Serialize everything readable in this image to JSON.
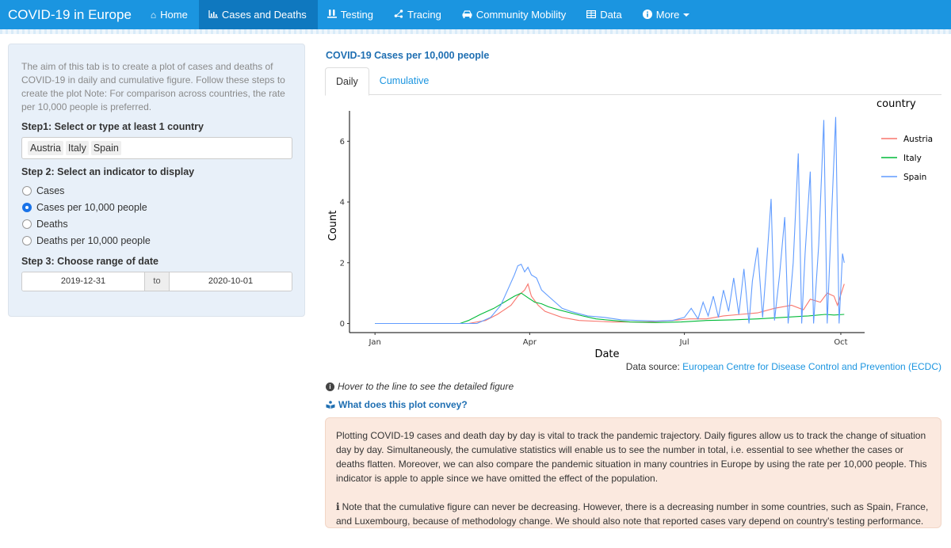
{
  "navbar": {
    "brand": "COVID-19 in Europe",
    "items": [
      {
        "label": "Home",
        "icon": "home-icon"
      },
      {
        "label": "Cases and Deaths",
        "icon": "bar-chart-icon",
        "active": true
      },
      {
        "label": "Testing",
        "icon": "vials-icon"
      },
      {
        "label": "Tracing",
        "icon": "share-nodes-icon"
      },
      {
        "label": "Community Mobility",
        "icon": "car-icon"
      },
      {
        "label": "Data",
        "icon": "table-icon"
      },
      {
        "label": "More",
        "icon": "info-circle-icon",
        "dropdown": true
      }
    ]
  },
  "sidebar": {
    "intro": "The aim of this tab is to create a plot of cases and deaths of COVID-19 in daily and cumulative figure. Follow these steps to create the plot Note: For comparison across countries, the rate per 10,000 people is preferred.",
    "step1": "Step1: Select or type at least 1 country",
    "countries": [
      "Austria",
      "Italy",
      "Spain"
    ],
    "step2": "Step 2: Select an indicator to display",
    "indicators": [
      "Cases",
      "Cases per 10,000 people",
      "Deaths",
      "Deaths per 10,000 people"
    ],
    "selected_indicator": "Cases per 10,000 people",
    "step3": "Step 3: Choose range of date",
    "date_start": "2019-12-31",
    "date_sep": "to",
    "date_end": "2020-10-01"
  },
  "main": {
    "title": "COVID-19 Cases per 10,000 people",
    "tabs": [
      {
        "label": "Daily",
        "active": true
      },
      {
        "label": "Cumulative"
      }
    ],
    "source_prefix": "Data source: ",
    "source_link": "European Centre for Disease Control and Prevention (ECDC)",
    "hint": "Hover to the line to see the detailed figure",
    "convey": "What does this plot convey?",
    "note_p1": "Plotting COVID-19 cases and death day by day is vital to track the pandemic trajectory. Daily figures allow us to track the change of situation day by day. Simultaneously, the cumulative statistics will enable us to see the number in total, i.e. essential to see whether the cases or deaths flatten. Moreover, we can also compare the pandemic situation in many countries in Europe by using the rate per 10,000 people. This indicator is apple to apple since we have omitted the effect of the population.",
    "note_p2": "Note that the cumulative figure can never be decreasing. However, there is a decreasing number in some countries, such as Spain, France, and Luxembourg, because of methodology change. We should also note that reported cases vary depend on country's testing performance."
  },
  "chart_data": {
    "type": "line",
    "xlabel": "Date",
    "ylabel": "Count",
    "legend_title": "country",
    "legend_position": "right",
    "x_ticks": [
      "Jan",
      "Apr",
      "Jul",
      "Oct"
    ],
    "x_tick_positions": [
      0,
      91,
      182,
      274
    ],
    "y_ticks": [
      0,
      2,
      4,
      6
    ],
    "ylim": [
      -0.3,
      7.0
    ],
    "xlim": [
      -15,
      288
    ],
    "colors": {
      "Austria": "#F8766D",
      "Italy": "#00BA38",
      "Spain": "#619CFF"
    },
    "series": [
      {
        "name": "Austria",
        "points": [
          [
            0,
            0
          ],
          [
            55,
            0
          ],
          [
            65,
            0.1
          ],
          [
            72,
            0.3
          ],
          [
            80,
            0.6
          ],
          [
            84,
            0.9
          ],
          [
            88,
            1.1
          ],
          [
            90,
            1.3
          ],
          [
            92,
            0.9
          ],
          [
            96,
            0.6
          ],
          [
            100,
            0.4
          ],
          [
            105,
            0.3
          ],
          [
            110,
            0.2
          ],
          [
            120,
            0.1
          ],
          [
            140,
            0.05
          ],
          [
            160,
            0.05
          ],
          [
            175,
            0.1
          ],
          [
            185,
            0.15
          ],
          [
            195,
            0.15
          ],
          [
            205,
            0.25
          ],
          [
            215,
            0.3
          ],
          [
            225,
            0.35
          ],
          [
            235,
            0.5
          ],
          [
            245,
            0.6
          ],
          [
            252,
            0.45
          ],
          [
            256,
            0.8
          ],
          [
            262,
            0.7
          ],
          [
            266,
            1.0
          ],
          [
            270,
            0.9
          ],
          [
            272,
            0.6
          ],
          [
            276,
            1.3
          ]
        ]
      },
      {
        "name": "Italy",
        "points": [
          [
            0,
            0
          ],
          [
            50,
            0
          ],
          [
            55,
            0.1
          ],
          [
            62,
            0.3
          ],
          [
            70,
            0.5
          ],
          [
            76,
            0.7
          ],
          [
            82,
            0.9
          ],
          [
            86,
            1.0
          ],
          [
            90,
            0.85
          ],
          [
            94,
            0.7
          ],
          [
            98,
            0.65
          ],
          [
            102,
            0.55
          ],
          [
            108,
            0.45
          ],
          [
            115,
            0.35
          ],
          [
            122,
            0.25
          ],
          [
            130,
            0.15
          ],
          [
            140,
            0.1
          ],
          [
            150,
            0.05
          ],
          [
            165,
            0.03
          ],
          [
            180,
            0.05
          ],
          [
            195,
            0.1
          ],
          [
            210,
            0.12
          ],
          [
            225,
            0.15
          ],
          [
            240,
            0.2
          ],
          [
            255,
            0.25
          ],
          [
            265,
            0.3
          ],
          [
            270,
            0.28
          ],
          [
            276,
            0.3
          ]
        ]
      },
      {
        "name": "Spain",
        "points": [
          [
            0,
            0
          ],
          [
            60,
            0
          ],
          [
            68,
            0.2
          ],
          [
            74,
            0.6
          ],
          [
            78,
            1.1
          ],
          [
            82,
            1.6
          ],
          [
            84,
            1.9
          ],
          [
            86,
            1.95
          ],
          [
            88,
            1.7
          ],
          [
            90,
            1.85
          ],
          [
            92,
            1.6
          ],
          [
            95,
            1.5
          ],
          [
            98,
            1.1
          ],
          [
            102,
            0.9
          ],
          [
            106,
            0.7
          ],
          [
            110,
            0.5
          ],
          [
            115,
            0.4
          ],
          [
            125,
            0.25
          ],
          [
            135,
            0.2
          ],
          [
            145,
            0.12
          ],
          [
            155,
            0.1
          ],
          [
            165,
            0.08
          ],
          [
            175,
            0.1
          ],
          [
            182,
            0.2
          ],
          [
            186,
            0.5
          ],
          [
            190,
            0.15
          ],
          [
            193,
            0.7
          ],
          [
            196,
            0.25
          ],
          [
            199,
            0.9
          ],
          [
            202,
            0.2
          ],
          [
            205,
            1.1
          ],
          [
            208,
            0.4
          ],
          [
            211,
            1.5
          ],
          [
            214,
            0.3
          ],
          [
            217,
            1.8
          ],
          [
            220,
            0.0
          ],
          [
            222,
            1.4
          ],
          [
            225,
            2.5
          ],
          [
            228,
            0.2
          ],
          [
            230,
            1.7
          ],
          [
            233,
            4.1
          ],
          [
            235,
            0.1
          ],
          [
            238,
            1.6
          ],
          [
            241,
            3.5
          ],
          [
            243,
            0.0
          ],
          [
            246,
            2.0
          ],
          [
            249,
            5.6
          ],
          [
            251,
            0.0
          ],
          [
            253,
            2.3
          ],
          [
            256,
            5.0
          ],
          [
            258,
            0.0
          ],
          [
            261,
            2.6
          ],
          [
            264,
            6.7
          ],
          [
            266,
            0.0
          ],
          [
            268,
            2.8
          ],
          [
            271,
            6.8
          ],
          [
            273,
            0.0
          ],
          [
            275,
            2.3
          ],
          [
            276,
            2.0
          ]
        ]
      }
    ]
  }
}
